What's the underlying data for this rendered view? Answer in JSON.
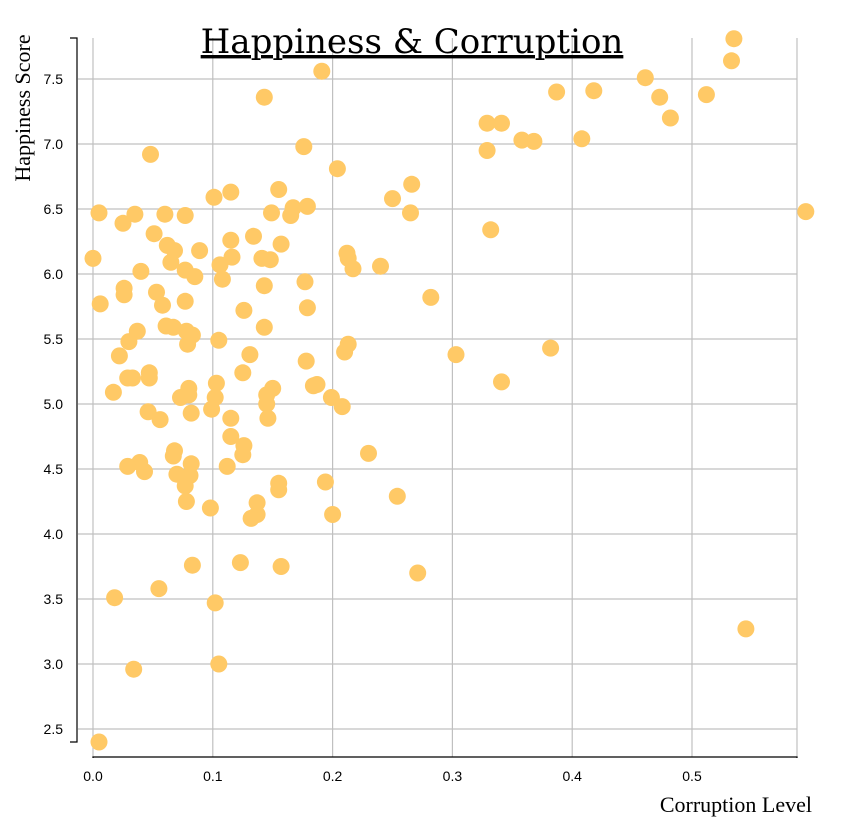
{
  "chart_data": {
    "type": "scatter",
    "title": "Happiness & Corruption",
    "xlabel": "Corruption Level",
    "ylabel": "Happiness Score",
    "xlim": [
      0,
      0.59
    ],
    "ylim": [
      2.35,
      7.85
    ],
    "x_ticks": [
      "0.0",
      "0.1",
      "0.2",
      "0.3",
      "0.4",
      "0.5"
    ],
    "y_ticks": [
      "2.5",
      "3.0",
      "3.5",
      "4.0",
      "4.5",
      "5.0",
      "5.5",
      "6.0",
      "6.5",
      "7.0",
      "7.5"
    ],
    "grid": true,
    "point_color": "#ffc966",
    "points": [
      [
        0.535,
        7.81
      ],
      [
        0.533,
        7.64
      ],
      [
        0.461,
        7.51
      ],
      [
        0.418,
        7.41
      ],
      [
        0.387,
        7.4
      ],
      [
        0.473,
        7.36
      ],
      [
        0.512,
        7.38
      ],
      [
        0.482,
        7.2
      ],
      [
        0.341,
        7.16
      ],
      [
        0.329,
        7.16
      ],
      [
        0.358,
        7.03
      ],
      [
        0.368,
        7.02
      ],
      [
        0.408,
        7.04
      ],
      [
        0.329,
        6.95
      ],
      [
        0.595,
        6.48
      ],
      [
        0.332,
        6.34
      ],
      [
        0.191,
        7.56
      ],
      [
        0.143,
        7.36
      ],
      [
        0.176,
        6.98
      ],
      [
        0.048,
        6.92
      ],
      [
        0.204,
        6.81
      ],
      [
        0.266,
        6.69
      ],
      [
        0.25,
        6.58
      ],
      [
        0.265,
        6.47
      ],
      [
        0.155,
        6.65
      ],
      [
        0.115,
        6.63
      ],
      [
        0.101,
        6.59
      ],
      [
        0.179,
        6.52
      ],
      [
        0.167,
        6.51
      ],
      [
        0.165,
        6.45
      ],
      [
        0.149,
        6.47
      ],
      [
        0.005,
        6.47
      ],
      [
        0.035,
        6.46
      ],
      [
        0.06,
        6.46
      ],
      [
        0.077,
        6.45
      ],
      [
        0.025,
        6.39
      ],
      [
        0.051,
        6.31
      ],
      [
        0.134,
        6.29
      ],
      [
        0.115,
        6.26
      ],
      [
        0.157,
        6.23
      ],
      [
        0.062,
        6.22
      ],
      [
        0.068,
        6.18
      ],
      [
        0.089,
        6.18
      ],
      [
        0.212,
        6.16
      ],
      [
        0.213,
        6.12
      ],
      [
        0.116,
        6.13
      ],
      [
        0.141,
        6.12
      ],
      [
        0.148,
        6.11
      ],
      [
        0.0,
        6.12
      ],
      [
        0.065,
        6.09
      ],
      [
        0.106,
        6.07
      ],
      [
        0.24,
        6.06
      ],
      [
        0.217,
        6.04
      ],
      [
        0.077,
        6.03
      ],
      [
        0.04,
        6.02
      ],
      [
        0.085,
        5.98
      ],
      [
        0.108,
        5.96
      ],
      [
        0.177,
        5.94
      ],
      [
        0.143,
        5.91
      ],
      [
        0.026,
        5.89
      ],
      [
        0.026,
        5.84
      ],
      [
        0.053,
        5.86
      ],
      [
        0.282,
        5.82
      ],
      [
        0.077,
        5.79
      ],
      [
        0.006,
        5.77
      ],
      [
        0.058,
        5.76
      ],
      [
        0.179,
        5.74
      ],
      [
        0.126,
        5.72
      ],
      [
        0.061,
        5.6
      ],
      [
        0.143,
        5.59
      ],
      [
        0.037,
        5.56
      ],
      [
        0.067,
        5.59
      ],
      [
        0.078,
        5.56
      ],
      [
        0.083,
        5.53
      ],
      [
        0.03,
        5.48
      ],
      [
        0.105,
        5.49
      ],
      [
        0.079,
        5.46
      ],
      [
        0.213,
        5.46
      ],
      [
        0.382,
        5.43
      ],
      [
        0.21,
        5.4
      ],
      [
        0.022,
        5.37
      ],
      [
        0.131,
        5.38
      ],
      [
        0.303,
        5.38
      ],
      [
        0.178,
        5.33
      ],
      [
        0.047,
        5.24
      ],
      [
        0.125,
        5.24
      ],
      [
        0.047,
        5.2
      ],
      [
        0.029,
        5.2
      ],
      [
        0.033,
        5.2
      ],
      [
        0.341,
        5.17
      ],
      [
        0.103,
        5.16
      ],
      [
        0.187,
        5.15
      ],
      [
        0.184,
        5.14
      ],
      [
        0.15,
        5.12
      ],
      [
        0.08,
        5.12
      ],
      [
        0.145,
        5.07
      ],
      [
        0.017,
        5.09
      ],
      [
        0.08,
        5.07
      ],
      [
        0.073,
        5.05
      ],
      [
        0.102,
        5.05
      ],
      [
        0.199,
        5.05
      ],
      [
        0.145,
        5.0
      ],
      [
        0.208,
        4.98
      ],
      [
        0.099,
        4.96
      ],
      [
        0.046,
        4.94
      ],
      [
        0.082,
        4.93
      ],
      [
        0.056,
        4.88
      ],
      [
        0.115,
        4.89
      ],
      [
        0.146,
        4.89
      ],
      [
        0.115,
        4.75
      ],
      [
        0.126,
        4.68
      ],
      [
        0.068,
        4.64
      ],
      [
        0.067,
        4.6
      ],
      [
        0.23,
        4.62
      ],
      [
        0.125,
        4.61
      ],
      [
        0.082,
        4.54
      ],
      [
        0.039,
        4.55
      ],
      [
        0.029,
        4.52
      ],
      [
        0.112,
        4.52
      ],
      [
        0.043,
        4.48
      ],
      [
        0.07,
        4.46
      ],
      [
        0.081,
        4.45
      ],
      [
        0.155,
        4.39
      ],
      [
        0.194,
        4.4
      ],
      [
        0.077,
        4.37
      ],
      [
        0.155,
        4.34
      ],
      [
        0.254,
        4.29
      ],
      [
        0.078,
        4.25
      ],
      [
        0.137,
        4.24
      ],
      [
        0.098,
        4.2
      ],
      [
        0.137,
        4.15
      ],
      [
        0.2,
        4.15
      ],
      [
        0.132,
        4.12
      ],
      [
        0.083,
        3.76
      ],
      [
        0.123,
        3.78
      ],
      [
        0.157,
        3.75
      ],
      [
        0.271,
        3.7
      ],
      [
        0.055,
        3.58
      ],
      [
        0.018,
        3.51
      ],
      [
        0.102,
        3.47
      ],
      [
        0.545,
        3.27
      ],
      [
        0.105,
        3.0
      ],
      [
        0.034,
        2.96
      ],
      [
        0.005,
        2.4
      ]
    ]
  }
}
